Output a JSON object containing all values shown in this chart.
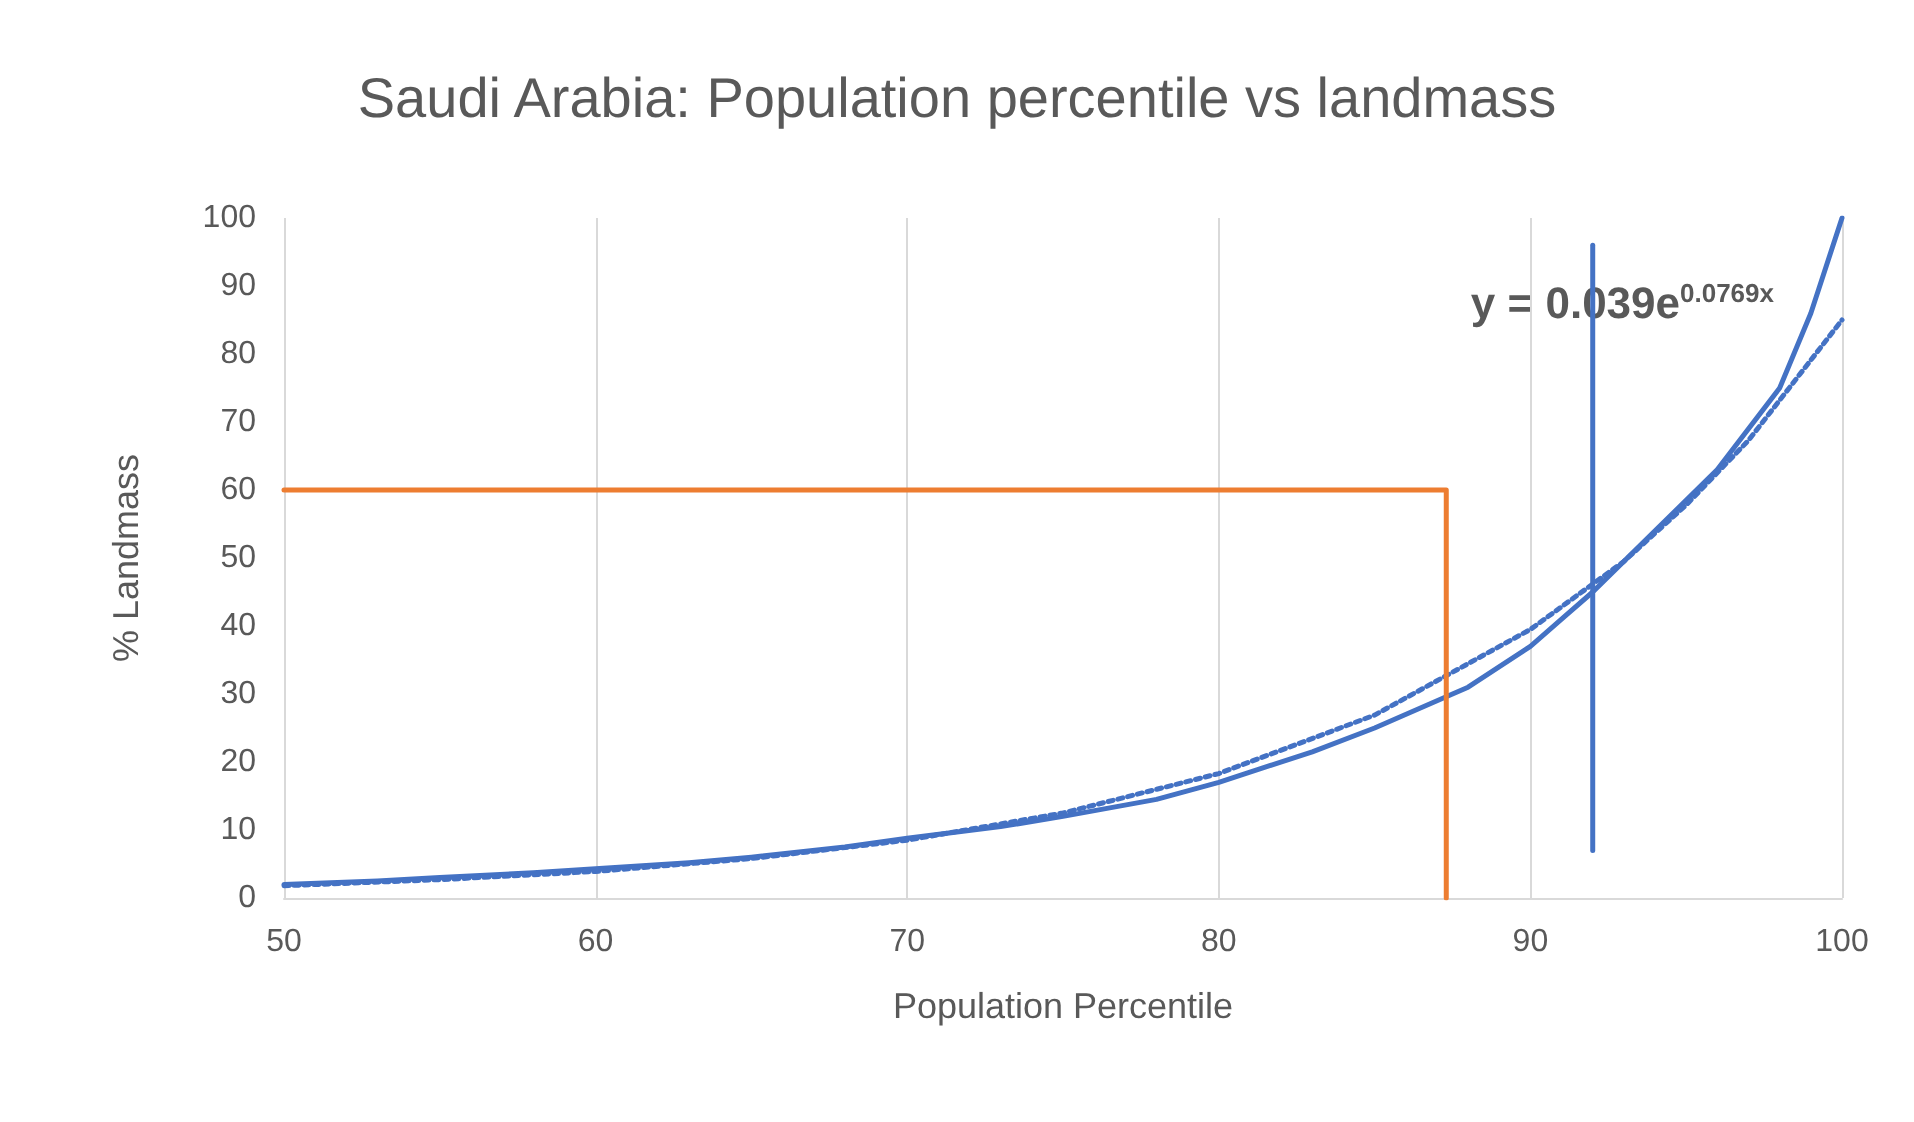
{
  "chart_data": {
    "type": "line",
    "title": "Saudi Arabia: Population percentile vs landmass",
    "xlabel": "Population Percentile",
    "ylabel": "% Landmass",
    "xlim": [
      50,
      100
    ],
    "xticks": [
      50,
      60,
      70,
      80,
      90,
      100
    ],
    "ylim": [
      0,
      100
    ],
    "yticks": [
      0,
      10,
      20,
      30,
      40,
      50,
      60,
      70,
      80,
      90,
      100
    ],
    "grid": "x",
    "marker": "none",
    "annotations": [
      "y = 0.039e$^{0.0769x}$"
    ],
    "series": [
      {
        "color": "#4472c4",
        "line_style": "solid",
        "x": [
          50,
          53,
          55,
          58,
          60,
          63,
          65,
          68,
          70,
          73,
          75,
          78,
          80,
          83,
          85,
          87.5,
          88,
          90,
          91,
          92,
          94,
          96,
          98,
          99,
          100
        ],
        "values": [
          2,
          2.5,
          3,
          3.7,
          4.3,
          5.2,
          6,
          7.5,
          8.8,
          10.5,
          12,
          14.5,
          17,
          21.5,
          25,
          30,
          31,
          37,
          41,
          45,
          54,
          63,
          75,
          86,
          100
        ]
      },
      {
        "color": "#4472c4",
        "line_style": "dotted",
        "x": [
          50,
          55,
          60,
          65,
          70,
          75,
          80,
          85,
          90,
          93,
          95,
          97,
          100
        ],
        "values": [
          1.8,
          2.7,
          3.9,
          5.8,
          8.5,
          12.5,
          18.3,
          26.9,
          39.5,
          49.5,
          57.8,
          67.3,
          85
        ]
      },
      {
        "color": "#ed7d31",
        "line_style": "solid",
        "x": [
          50,
          87.3,
          87.3
        ],
        "values": [
          60,
          60,
          0
        ]
      },
      {
        "color": "#4472c4",
        "line_style": "solid",
        "x": [
          92,
          92
        ],
        "values": [
          7,
          96
        ]
      }
    ]
  }
}
